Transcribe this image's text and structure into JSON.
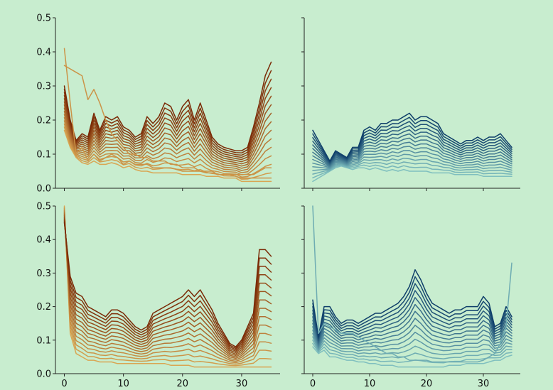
{
  "chart_data": [
    {
      "type": "line",
      "palette": [
        "#d9a653",
        "#7a2905"
      ],
      "xlim": [
        -1.5,
        36.5
      ],
      "ylim": [
        0,
        0.5
      ],
      "xticks": [
        0,
        10,
        20,
        30
      ],
      "yticks": [
        0.0,
        0.1,
        0.2,
        0.3,
        0.4,
        0.5
      ],
      "show_x_tick_labels": false,
      "show_y_tick_labels": true,
      "x": [
        0,
        1,
        2,
        3,
        4,
        5,
        6,
        7,
        8,
        9,
        10,
        11,
        12,
        13,
        14,
        15,
        16,
        17,
        18,
        19,
        20,
        21,
        22,
        23,
        24,
        25,
        26,
        27,
        28,
        29,
        30,
        31,
        32,
        33,
        34,
        35
      ],
      "series_low": [
        0.17,
        0.12,
        0.09,
        0.075,
        0.07,
        0.08,
        0.07,
        0.07,
        0.075,
        0.07,
        0.06,
        0.065,
        0.055,
        0.05,
        0.05,
        0.045,
        0.045,
        0.045,
        0.045,
        0.045,
        0.04,
        0.04,
        0.04,
        0.04,
        0.035,
        0.035,
        0.035,
        0.03,
        0.03,
        0.03,
        0.02,
        0.02,
        0.02,
        0.02,
        0.02,
        0.02
      ],
      "series_high": [
        0.3,
        0.2,
        0.14,
        0.16,
        0.15,
        0.22,
        0.17,
        0.21,
        0.2,
        0.21,
        0.18,
        0.17,
        0.15,
        0.16,
        0.21,
        0.19,
        0.21,
        0.25,
        0.24,
        0.2,
        0.24,
        0.26,
        0.2,
        0.25,
        0.2,
        0.15,
        0.13,
        0.12,
        0.115,
        0.11,
        0.11,
        0.12,
        0.18,
        0.25,
        0.33,
        0.37
      ],
      "series_count": 15,
      "outliers": [
        {
          "values": [
            0.41,
            0.25,
            0.1,
            0.12,
            0.08,
            0.1,
            0.08,
            0.09,
            0.1,
            0.09,
            0.07,
            0.08,
            0.07,
            0.07,
            0.07,
            0.06,
            0.06,
            0.06,
            0.06,
            0.055,
            0.05,
            0.05,
            0.05,
            0.05,
            0.045,
            0.045,
            0.04,
            0.04,
            0.04,
            0.035,
            0.03,
            0.03,
            0.03,
            0.03,
            0.03,
            0.03
          ]
        },
        {
          "values": [
            0.36,
            0.35,
            0.34,
            0.33,
            0.26,
            0.29,
            0.25,
            0.2,
            0.16,
            0.14,
            0.12,
            0.1,
            0.1,
            0.09,
            0.09,
            0.08,
            0.08,
            0.08,
            0.07,
            0.07,
            0.06,
            0.06,
            0.06,
            0.05,
            0.05,
            0.05,
            0.04,
            0.04,
            0.04,
            0.04,
            0.04,
            0.04,
            0.04,
            0.05,
            0.06,
            0.06
          ]
        }
      ]
    },
    {
      "type": "line",
      "palette": [
        "#7fbfbf",
        "#0f3f6a"
      ],
      "xlim": [
        -1.5,
        36.5
      ],
      "ylim": [
        0,
        0.5
      ],
      "xticks": [
        0,
        10,
        20,
        30
      ],
      "yticks": [
        0.0,
        0.1,
        0.2,
        0.3,
        0.4,
        0.5
      ],
      "show_x_tick_labels": false,
      "show_y_tick_labels": false,
      "x": [
        0,
        1,
        2,
        3,
        4,
        5,
        6,
        7,
        8,
        9,
        10,
        11,
        12,
        13,
        14,
        15,
        16,
        17,
        18,
        19,
        20,
        21,
        22,
        23,
        24,
        25,
        26,
        27,
        28,
        29,
        30,
        31,
        32,
        33,
        34,
        35
      ],
      "series_low": [
        0.02,
        0.03,
        0.04,
        0.05,
        0.06,
        0.065,
        0.06,
        0.055,
        0.06,
        0.06,
        0.055,
        0.06,
        0.055,
        0.05,
        0.055,
        0.05,
        0.055,
        0.05,
        0.05,
        0.05,
        0.05,
        0.045,
        0.045,
        0.045,
        0.045,
        0.04,
        0.04,
        0.04,
        0.04,
        0.04,
        0.035,
        0.035,
        0.035,
        0.035,
        0.035,
        0.035
      ],
      "series_high": [
        0.17,
        0.14,
        0.11,
        0.08,
        0.11,
        0.1,
        0.09,
        0.12,
        0.12,
        0.17,
        0.18,
        0.17,
        0.19,
        0.19,
        0.2,
        0.2,
        0.21,
        0.22,
        0.2,
        0.21,
        0.21,
        0.2,
        0.19,
        0.16,
        0.15,
        0.14,
        0.13,
        0.14,
        0.14,
        0.15,
        0.14,
        0.15,
        0.15,
        0.16,
        0.14,
        0.12
      ],
      "series_count": 15,
      "outliers": []
    },
    {
      "type": "line",
      "palette": [
        "#d9a653",
        "#7a2905"
      ],
      "xlim": [
        -1.5,
        36.5
      ],
      "ylim": [
        0,
        0.5
      ],
      "xticks": [
        0,
        10,
        20,
        30
      ],
      "yticks": [
        0.0,
        0.1,
        0.2,
        0.3,
        0.4,
        0.5
      ],
      "show_x_tick_labels": true,
      "show_y_tick_labels": true,
      "x": [
        0,
        1,
        2,
        3,
        4,
        5,
        6,
        7,
        8,
        9,
        10,
        11,
        12,
        13,
        14,
        15,
        16,
        17,
        18,
        19,
        20,
        21,
        22,
        23,
        24,
        25,
        26,
        27,
        28,
        29,
        30,
        31,
        32,
        33,
        34,
        35
      ],
      "series_low": [
        0.5,
        0.12,
        0.06,
        0.05,
        0.04,
        0.04,
        0.035,
        0.035,
        0.035,
        0.03,
        0.03,
        0.03,
        0.03,
        0.03,
        0.03,
        0.03,
        0.03,
        0.03,
        0.025,
        0.025,
        0.025,
        0.025,
        0.02,
        0.02,
        0.02,
        0.02,
        0.02,
        0.02,
        0.02,
        0.02,
        0.02,
        0.02,
        0.02,
        0.02,
        0.02,
        0.02
      ],
      "series_high": [
        0.45,
        0.29,
        0.24,
        0.23,
        0.2,
        0.19,
        0.18,
        0.17,
        0.19,
        0.19,
        0.18,
        0.16,
        0.14,
        0.13,
        0.14,
        0.18,
        0.19,
        0.2,
        0.21,
        0.22,
        0.23,
        0.25,
        0.23,
        0.25,
        0.22,
        0.19,
        0.15,
        0.12,
        0.09,
        0.08,
        0.1,
        0.14,
        0.18,
        0.37,
        0.37,
        0.35
      ],
      "series_count": 15,
      "outliers": []
    },
    {
      "type": "line",
      "palette": [
        "#7fbfbf",
        "#0f3f6a"
      ],
      "xlim": [
        -1.5,
        36.5
      ],
      "ylim": [
        0,
        0.5
      ],
      "xticks": [
        0,
        10,
        20,
        30
      ],
      "yticks": [
        0.0,
        0.1,
        0.2,
        0.3,
        0.4,
        0.5
      ],
      "show_x_tick_labels": true,
      "show_y_tick_labels": false,
      "x": [
        0,
        1,
        2,
        3,
        4,
        5,
        6,
        7,
        8,
        9,
        10,
        11,
        12,
        13,
        14,
        15,
        16,
        17,
        18,
        19,
        20,
        21,
        22,
        23,
        24,
        25,
        26,
        27,
        28,
        29,
        30,
        31,
        32,
        33,
        34,
        35
      ],
      "series_low": [
        0.08,
        0.06,
        0.07,
        0.05,
        0.05,
        0.045,
        0.04,
        0.04,
        0.035,
        0.035,
        0.03,
        0.03,
        0.025,
        0.025,
        0.025,
        0.02,
        0.02,
        0.02,
        0.02,
        0.02,
        0.02,
        0.02,
        0.02,
        0.02,
        0.025,
        0.025,
        0.025,
        0.03,
        0.03,
        0.03,
        0.03,
        0.035,
        0.04,
        0.04,
        0.05,
        0.055
      ],
      "series_high": [
        0.22,
        0.11,
        0.2,
        0.2,
        0.17,
        0.15,
        0.16,
        0.16,
        0.15,
        0.16,
        0.17,
        0.18,
        0.18,
        0.19,
        0.2,
        0.21,
        0.23,
        0.26,
        0.31,
        0.28,
        0.24,
        0.21,
        0.2,
        0.19,
        0.18,
        0.19,
        0.19,
        0.2,
        0.2,
        0.2,
        0.23,
        0.21,
        0.14,
        0.15,
        0.2,
        0.17
      ],
      "series_count": 15,
      "outliers": [
        {
          "values": [
            0.5,
            0.12,
            0.15,
            0.14,
            0.13,
            0.12,
            0.12,
            0.12,
            0.11,
            0.1,
            0.09,
            0.08,
            0.07,
            0.06,
            0.06,
            0.05,
            0.05,
            0.04,
            0.04,
            0.04,
            0.04,
            0.035,
            0.035,
            0.035,
            0.035,
            0.035,
            0.035,
            0.035,
            0.035,
            0.035,
            0.04,
            0.05,
            0.06,
            0.09,
            0.14,
            0.33
          ]
        }
      ]
    }
  ]
}
